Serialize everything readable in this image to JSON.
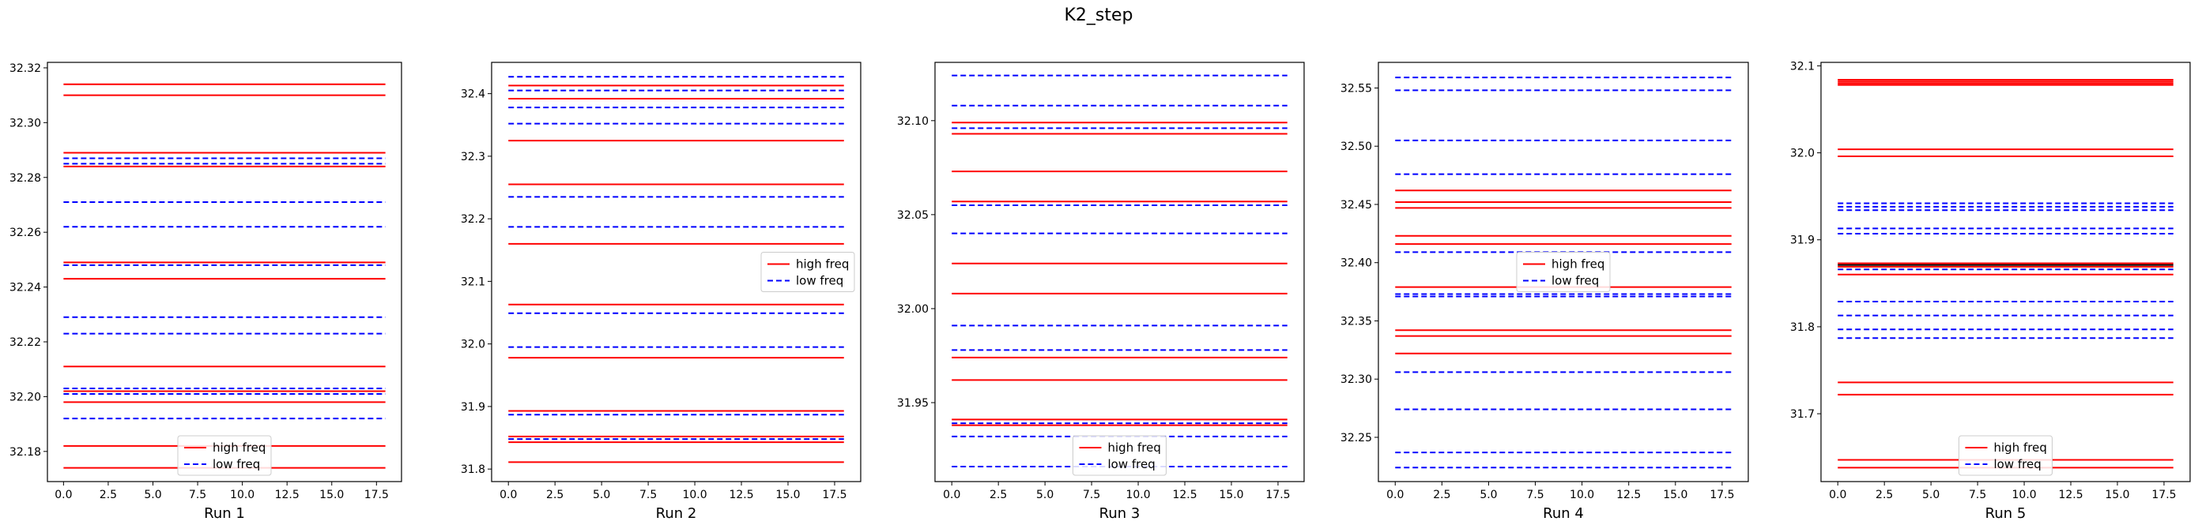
{
  "figure": {
    "title": "K2_step"
  },
  "colors": {
    "high": "#ff0000",
    "low": "#0000ff",
    "axis": "#000000"
  },
  "chart_data": [
    {
      "type": "line",
      "xlabel": "Run 1",
      "xlim": [
        -0.9,
        18.9
      ],
      "ylim": [
        32.169,
        32.322
      ],
      "xticks": [
        0,
        2.5,
        5,
        7.5,
        10,
        12.5,
        15,
        17.5
      ],
      "xtick_labels": [
        "0.0",
        "2.5",
        "5.0",
        "7.5",
        "10.0",
        "12.5",
        "15.0",
        "17.5"
      ],
      "yticks": [
        32.18,
        32.2,
        32.22,
        32.24,
        32.26,
        32.28,
        32.3,
        32.32
      ],
      "ytick_labels": [
        "32.18",
        "32.20",
        "32.22",
        "32.24",
        "32.26",
        "32.28",
        "32.30",
        "32.32"
      ],
      "x_range": [
        0,
        18
      ],
      "series": [
        {
          "name": "high freq",
          "style": "solid",
          "values": [
            32.314,
            32.31,
            32.289,
            32.284,
            32.249,
            32.243,
            32.211,
            32.202,
            32.198,
            32.182,
            32.174
          ]
        },
        {
          "name": "low freq",
          "style": "dashed",
          "values": [
            32.287,
            32.285,
            32.271,
            32.262,
            32.248,
            32.229,
            32.223,
            32.203,
            32.201,
            32.192
          ]
        }
      ],
      "legend": {
        "position": "lower center"
      }
    },
    {
      "type": "line",
      "xlabel": "Run 2",
      "xlim": [
        -0.9,
        18.9
      ],
      "ylim": [
        31.78,
        32.45
      ],
      "xticks": [
        0,
        2.5,
        5,
        7.5,
        10,
        12.5,
        15,
        17.5
      ],
      "xtick_labels": [
        "0.0",
        "2.5",
        "5.0",
        "7.5",
        "10.0",
        "12.5",
        "15.0",
        "17.5"
      ],
      "yticks": [
        31.8,
        31.9,
        32.0,
        32.1,
        32.2,
        32.3,
        32.4
      ],
      "ytick_labels": [
        "31.8",
        "31.9",
        "32.0",
        "32.1",
        "32.2",
        "32.3",
        "32.4"
      ],
      "x_range": [
        0,
        18
      ],
      "series": [
        {
          "name": "high freq",
          "style": "solid",
          "values": [
            32.413,
            32.392,
            32.325,
            32.255,
            32.16,
            32.063,
            31.978,
            31.893,
            31.852,
            31.843,
            31.811
          ]
        },
        {
          "name": "low freq",
          "style": "dashed",
          "values": [
            32.427,
            32.405,
            32.378,
            32.352,
            32.235,
            32.187,
            32.049,
            31.995,
            31.887,
            31.848
          ]
        }
      ],
      "legend": {
        "position": "center right"
      }
    },
    {
      "type": "line",
      "xlabel": "Run 3",
      "xlim": [
        -0.9,
        18.9
      ],
      "ylim": [
        31.908,
        32.131
      ],
      "xticks": [
        0,
        2.5,
        5,
        7.5,
        10,
        12.5,
        15,
        17.5
      ],
      "xtick_labels": [
        "0.0",
        "2.5",
        "5.0",
        "7.5",
        "10.0",
        "12.5",
        "15.0",
        "17.5"
      ],
      "yticks": [
        31.95,
        32.0,
        32.05,
        32.1
      ],
      "ytick_labels": [
        "31.95",
        "32.00",
        "32.05",
        "32.10"
      ],
      "x_range": [
        0,
        18
      ],
      "series": [
        {
          "name": "high freq",
          "style": "solid",
          "values": [
            32.099,
            32.093,
            32.073,
            32.057,
            32.024,
            32.008,
            31.974,
            31.962,
            31.941,
            31.938
          ]
        },
        {
          "name": "low freq",
          "style": "dashed",
          "values": [
            32.124,
            32.108,
            32.096,
            32.055,
            32.04,
            31.991,
            31.978,
            31.939,
            31.932,
            31.916
          ]
        }
      ],
      "legend": {
        "position": "lower center"
      }
    },
    {
      "type": "line",
      "xlabel": "Run 4",
      "xlim": [
        -0.9,
        18.9
      ],
      "ylim": [
        32.212,
        32.572
      ],
      "xticks": [
        0,
        2.5,
        5,
        7.5,
        10,
        12.5,
        15,
        17.5
      ],
      "xtick_labels": [
        "0.0",
        "2.5",
        "5.0",
        "7.5",
        "10.0",
        "12.5",
        "15.0",
        "17.5"
      ],
      "yticks": [
        32.25,
        32.3,
        32.35,
        32.4,
        32.45,
        32.5,
        32.55
      ],
      "ytick_labels": [
        "32.25",
        "32.30",
        "32.35",
        "32.40",
        "32.45",
        "32.50",
        "32.55"
      ],
      "x_range": [
        0,
        18
      ],
      "series": [
        {
          "name": "high freq",
          "style": "solid",
          "values": [
            32.462,
            32.452,
            32.447,
            32.423,
            32.416,
            32.379,
            32.342,
            32.337,
            32.322
          ]
        },
        {
          "name": "low freq",
          "style": "dashed",
          "values": [
            32.559,
            32.548,
            32.505,
            32.476,
            32.409,
            32.373,
            32.371,
            32.306,
            32.274,
            32.237,
            32.224
          ]
        }
      ],
      "legend": {
        "position": "center"
      }
    },
    {
      "type": "line",
      "xlabel": "Run 5",
      "xlim": [
        -0.9,
        18.9
      ],
      "ylim": [
        31.622,
        32.104
      ],
      "xticks": [
        0,
        2.5,
        5,
        7.5,
        10,
        12.5,
        15,
        17.5
      ],
      "xtick_labels": [
        "0.0",
        "2.5",
        "5.0",
        "7.5",
        "10.0",
        "12.5",
        "15.0",
        "17.5"
      ],
      "yticks": [
        31.7,
        31.8,
        31.9,
        32.0,
        32.1
      ],
      "ytick_labels": [
        "31.7",
        "31.8",
        "31.9",
        "32.0",
        "32.1"
      ],
      "x_range": [
        0,
        18
      ],
      "series": [
        {
          "name": "high freq",
          "style": "solid",
          "values": [
            32.084,
            32.082,
            32.08,
            32.078,
            32.004,
            31.996,
            31.873,
            31.869,
            31.86,
            31.736,
            31.722,
            31.647,
            31.638
          ]
        },
        {
          "name": "low freq",
          "style": "dashed",
          "values": [
            31.942,
            31.938,
            31.934,
            31.913,
            31.907,
            31.866,
            31.829,
            31.813,
            31.797,
            31.787
          ]
        }
      ],
      "extra_lines": [
        {
          "color": "#000000",
          "value": 31.871
        }
      ],
      "legend": {
        "position": "lower center"
      }
    }
  ]
}
